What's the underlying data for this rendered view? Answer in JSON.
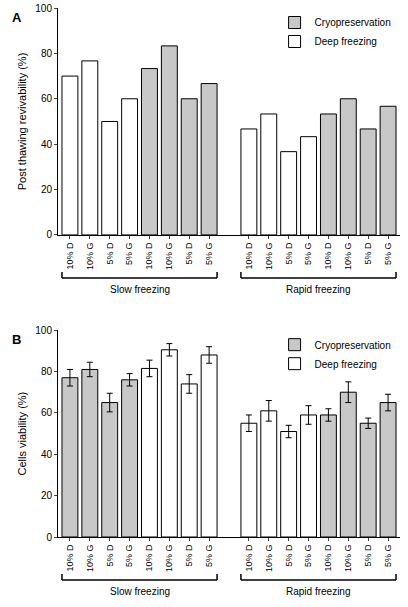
{
  "chart_data": [
    {
      "type": "bar",
      "label": "A",
      "y_label": "Post thawing revivability (%)",
      "categories": [
        "10% D",
        "10% G",
        "5% D",
        "5% G",
        "10% D",
        "10% G",
        "5% D",
        "5% G",
        null,
        "10% D",
        "10% G",
        "5% D",
        "5% G",
        "10% D",
        "10% G",
        "5% D",
        "5% G"
      ],
      "group_labels": [
        "Slow freezing",
        "Rapid freezing"
      ],
      "series": [
        {
          "name": "Cryopreservation",
          "color": "#c8c8c8",
          "values": [
            null,
            null,
            null,
            null,
            73.3,
            83.3,
            60,
            66.7,
            null,
            null,
            null,
            null,
            null,
            53.3,
            60,
            46.7,
            56.7
          ]
        },
        {
          "name": "Deep freezing",
          "color": "#ffffff",
          "values": [
            70,
            76.7,
            50,
            60,
            null,
            null,
            null,
            null,
            null,
            46.7,
            53.3,
            36.7,
            43.3,
            null,
            null,
            null,
            null
          ]
        }
      ],
      "ylim": [
        0,
        100
      ],
      "yticks": [
        0,
        20,
        40,
        60,
        80,
        100
      ],
      "legend": "top right",
      "grid": false
    },
    {
      "type": "bar",
      "label": "B",
      "y_label": "Cells viability (%)",
      "categories": [
        "10% D",
        "10% G",
        "5% D",
        "5% G",
        "10% D",
        "10% G",
        "5% D",
        "5% G",
        null,
        "10% D",
        "10% G",
        "5% D",
        "5% G",
        "10% D",
        "10% G",
        "5% D",
        "5% G"
      ],
      "group_labels": [
        "Slow freezing",
        "Rapid freezing"
      ],
      "series": [
        {
          "name": "Cryopreservation",
          "color": "#c8c8c8",
          "values": [
            77,
            81,
            65,
            76,
            null,
            null,
            null,
            null,
            null,
            null,
            null,
            null,
            null,
            59,
            70,
            55,
            65
          ],
          "errors": [
            4,
            3.5,
            4.5,
            3,
            null,
            null,
            null,
            null,
            null,
            null,
            null,
            null,
            null,
            3,
            5,
            2.5,
            4
          ]
        },
        {
          "name": "Deep freezing",
          "color": "#ffffff",
          "values": [
            null,
            null,
            null,
            null,
            81.5,
            90.5,
            74,
            88,
            null,
            55,
            61,
            51,
            59,
            null,
            null,
            null,
            null
          ],
          "errors": [
            null,
            null,
            null,
            null,
            4,
            3,
            4.5,
            4,
            null,
            4,
            5,
            3,
            4.5,
            null,
            null,
            null,
            null
          ]
        }
      ],
      "ylim": [
        0,
        100
      ],
      "yticks": [
        0,
        20,
        40,
        60,
        80,
        100
      ],
      "legend": "top right",
      "grid": false
    }
  ]
}
